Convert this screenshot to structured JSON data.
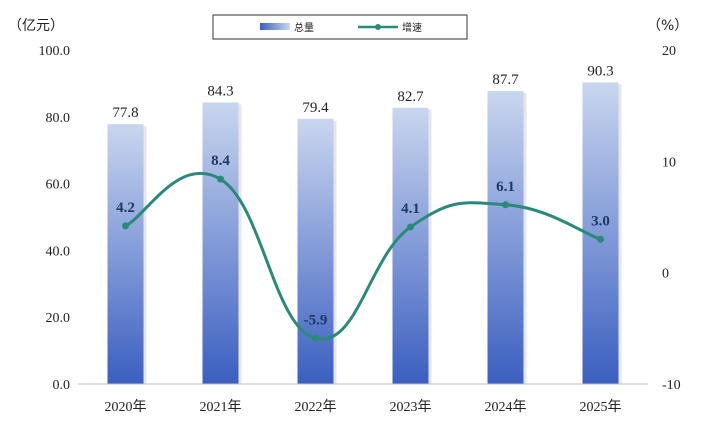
{
  "chart_data": {
    "type": "bar",
    "categories": [
      "2020年",
      "2021年",
      "2022年",
      "2023年",
      "2024年",
      "2025年"
    ],
    "series": [
      {
        "name": "总量",
        "type": "bar",
        "axis": "left",
        "values": [
          77.8,
          84.3,
          79.4,
          82.7,
          87.7,
          90.3
        ]
      },
      {
        "name": "增速",
        "type": "line",
        "axis": "right",
        "values": [
          4.2,
          8.4,
          -5.9,
          4.1,
          6.1,
          3.0
        ]
      }
    ],
    "left_axis": {
      "unit": "（亿元）",
      "ylim": [
        0,
        100
      ],
      "ticks": [
        "0.0",
        "20.0",
        "40.0",
        "60.0",
        "80.0",
        "100.0"
      ]
    },
    "right_axis": {
      "unit": "（%）",
      "ylim": [
        -10,
        20
      ],
      "ticks": [
        "-10",
        "0",
        "10",
        "20"
      ]
    },
    "bar_labels": [
      "77.8",
      "84.3",
      "79.4",
      "82.7",
      "87.7",
      "90.3"
    ],
    "line_labels": [
      "4.2",
      "8.4",
      "-5.9",
      "4.1",
      "6.1",
      "3.0"
    ],
    "legend_position": "top-center",
    "grid": false,
    "colors": {
      "bar_top": "#c9d6ef",
      "bar_bottom": "#3b5fc0",
      "line": "#2a8a7a",
      "line_label": "#1f3864"
    }
  }
}
